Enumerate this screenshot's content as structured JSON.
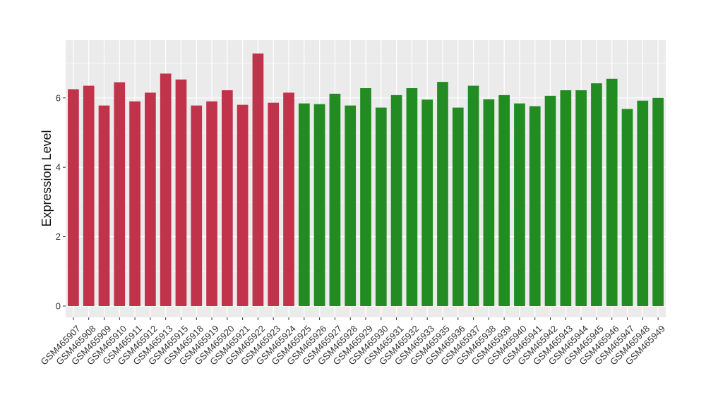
{
  "chart_data": {
    "type": "bar",
    "title": "",
    "xlabel": "",
    "ylabel": "Expression Level",
    "ylim": [
      0,
      7.6
    ],
    "yticks": [
      0,
      2,
      4,
      6
    ],
    "grid": true,
    "legend": "none",
    "panel_background": "#ebebeb",
    "grid_color": "#ffffff",
    "categories": [
      "GSM465907",
      "GSM465908",
      "GSM465909",
      "GSM465910",
      "GSM465911",
      "GSM465912",
      "GSM465913",
      "GSM465915",
      "GSM465918",
      "GSM465919",
      "GSM465920",
      "GSM465921",
      "GSM465922",
      "GSM465923",
      "GSM465924",
      "GSM465925",
      "GSM465926",
      "GSM465927",
      "GSM465928",
      "GSM465929",
      "GSM465930",
      "GSM465931",
      "GSM465932",
      "GSM465933",
      "GSM465935",
      "GSM465936",
      "GSM465937",
      "GSM465938",
      "GSM465939",
      "GSM465940",
      "GSM465941",
      "GSM465942",
      "GSM465943",
      "GSM465944",
      "GSM465945",
      "GSM465946",
      "GSM465947",
      "GSM465948",
      "GSM465949"
    ],
    "values": [
      6.25,
      6.35,
      5.78,
      6.45,
      5.9,
      6.15,
      6.7,
      6.53,
      5.78,
      5.9,
      6.22,
      5.8,
      7.28,
      5.86,
      6.15,
      5.84,
      5.82,
      6.12,
      5.78,
      6.28,
      5.72,
      6.08,
      6.28,
      5.95,
      6.46,
      5.72,
      6.35,
      5.96,
      6.08,
      5.84,
      5.76,
      6.06,
      6.22,
      6.22,
      6.42,
      6.55,
      5.68,
      5.92,
      6.0
    ],
    "colors": [
      "#c0334a",
      "#c0334a",
      "#c0334a",
      "#c0334a",
      "#c0334a",
      "#c0334a",
      "#c0334a",
      "#c0334a",
      "#c0334a",
      "#c0334a",
      "#c0334a",
      "#c0334a",
      "#c0334a",
      "#c0334a",
      "#c0334a",
      "#228b22",
      "#228b22",
      "#228b22",
      "#228b22",
      "#228b22",
      "#228b22",
      "#228b22",
      "#228b22",
      "#228b22",
      "#228b22",
      "#228b22",
      "#228b22",
      "#228b22",
      "#228b22",
      "#228b22",
      "#228b22",
      "#228b22",
      "#228b22",
      "#228b22",
      "#228b22",
      "#228b22",
      "#228b22",
      "#228b22",
      "#228b22"
    ]
  }
}
